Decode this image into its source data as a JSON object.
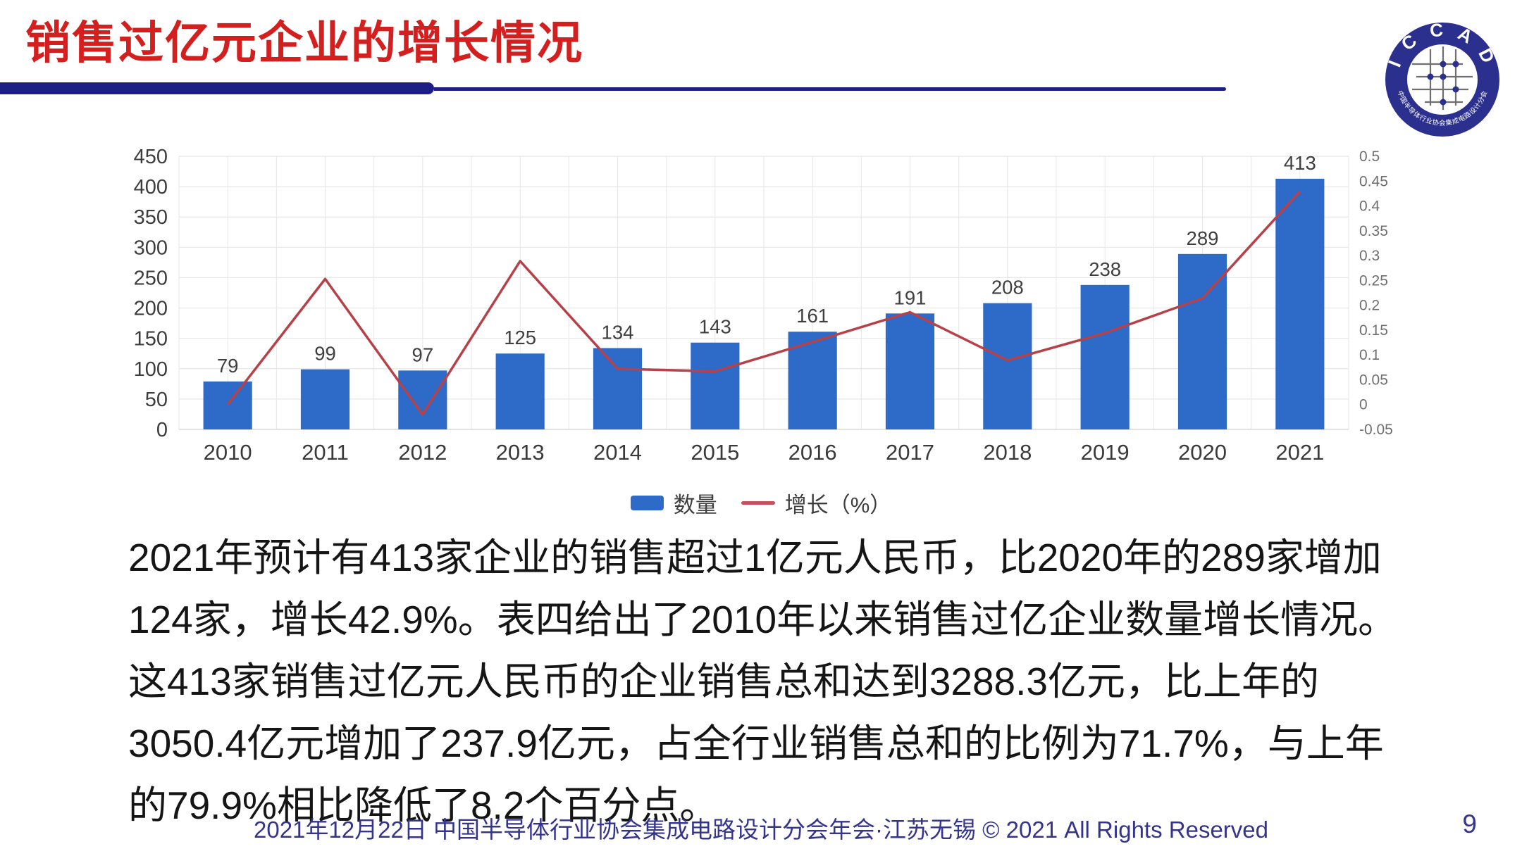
{
  "slide": {
    "title": "销售过亿元企业的增长情况",
    "page_number": "9",
    "footer": "2021年12月22日 中国半导体行业协会集成电路设计分会年会·江苏无锡 © 2021 All Rights Reserved"
  },
  "logo": {
    "arc_top": "I C C A D",
    "arc_bottom": "中国半导体行业协会集成电路设计分会"
  },
  "legend": {
    "bar_label": "数量",
    "line_label": "增长（%）"
  },
  "body": {
    "lines": [
      "2021年预计有413家企业的销售超过1亿元人民币，比2020年的289家增加",
      "124家，增长42.9%。表四给出了2010年以来销售过亿企业数量增长情况。",
      "这413家销售过亿元人民币的企业销售总和达到3288.3亿元，比上年的",
      "3050.4亿元增加了237.9亿元，占全行业销售总和的比例为71.7%，与上年",
      "的79.9%相比降低了8.2个百分点。"
    ]
  },
  "colors": {
    "title_red": "#d3201f",
    "navy": "#1d1f85",
    "footer_navy": "#34348c",
    "bar": "#2e6ac8",
    "line": "#b64148",
    "grid": "#e7e7e7",
    "baseline": "#d2d2d2"
  },
  "chart_data": {
    "type": "bar",
    "subtype": "bar+line combo",
    "categories": [
      "2010",
      "2011",
      "2012",
      "2013",
      "2014",
      "2015",
      "2016",
      "2017",
      "2018",
      "2019",
      "2020",
      "2021"
    ],
    "series": [
      {
        "name": "数量",
        "type": "bar",
        "axis": "left",
        "color": "#2e6ac8",
        "values": [
          79,
          99,
          97,
          125,
          134,
          143,
          161,
          191,
          208,
          238,
          289,
          413
        ]
      },
      {
        "name": "增长（%）",
        "type": "line",
        "axis": "right",
        "color": "#b64148",
        "values": [
          0.0,
          0.253,
          -0.02,
          0.289,
          0.072,
          0.067,
          0.126,
          0.186,
          0.089,
          0.144,
          0.214,
          0.429
        ]
      }
    ],
    "left_axis": {
      "min": 0,
      "max": 450,
      "step": 50
    },
    "right_axis": {
      "min": -0.05,
      "max": 0.5,
      "step": 0.05
    },
    "data_labels": true,
    "grid": true,
    "legend_position": "bottom",
    "title": "",
    "xlabel": "",
    "ylabel": ""
  }
}
